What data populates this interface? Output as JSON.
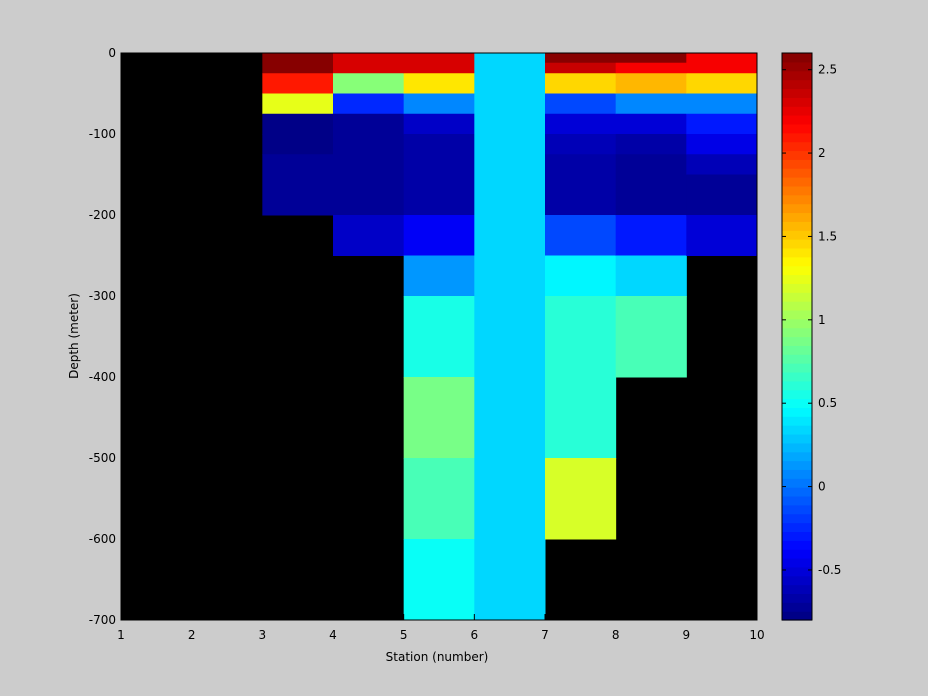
{
  "chart_data": {
    "type": "heatmap",
    "title": "",
    "xlabel": "Station (number)",
    "ylabel": "Depth (meter)",
    "xlim": [
      1,
      10
    ],
    "ylim": [
      -700,
      0
    ],
    "x_ticks": [
      1,
      2,
      3,
      4,
      5,
      6,
      7,
      8,
      9,
      10
    ],
    "y_ticks": [
      0,
      -100,
      -200,
      -300,
      -400,
      -500,
      -600,
      -700
    ],
    "background": "#000000",
    "colormap": "jet",
    "clim": [
      -0.8,
      2.6
    ],
    "colorbar_ticks": [
      2.5,
      2,
      1.5,
      1,
      0.5,
      0,
      -0.5
    ],
    "colorbar_levels": 64,
    "cells": [
      {
        "x0": 3,
        "x1": 4,
        "y0": 0,
        "y1": -25,
        "value": 2.6
      },
      {
        "x0": 3,
        "x1": 4,
        "y0": -25,
        "y1": -50,
        "value": 2.1
      },
      {
        "x0": 3,
        "x1": 4,
        "y0": -50,
        "y1": -75,
        "value": 1.25
      },
      {
        "x0": 3,
        "x1": 4,
        "y0": -75,
        "y1": -100,
        "value": -0.75
      },
      {
        "x0": 3,
        "x1": 4,
        "y0": -100,
        "y1": -125,
        "value": -0.8
      },
      {
        "x0": 3,
        "x1": 4,
        "y0": -125,
        "y1": -200,
        "value": -0.7
      },
      {
        "x0": 4,
        "x1": 5,
        "y0": 0,
        "y1": -25,
        "value": 2.3
      },
      {
        "x0": 4,
        "x1": 5,
        "y0": -25,
        "y1": -50,
        "value": 0.95
      },
      {
        "x0": 4,
        "x1": 5,
        "y0": -50,
        "y1": -75,
        "value": -0.25
      },
      {
        "x0": 4,
        "x1": 5,
        "y0": -75,
        "y1": -200,
        "value": -0.7
      },
      {
        "x0": 4,
        "x1": 5,
        "y0": -200,
        "y1": -250,
        "value": -0.55
      },
      {
        "x0": 5,
        "x1": 6,
        "y0": 0,
        "y1": -25,
        "value": 2.3
      },
      {
        "x0": 5,
        "x1": 6,
        "y0": -25,
        "y1": -50,
        "value": 1.4
      },
      {
        "x0": 5,
        "x1": 6,
        "y0": -50,
        "y1": -75,
        "value": 0.1
      },
      {
        "x0": 5,
        "x1": 6,
        "y0": -75,
        "y1": -100,
        "value": -0.55
      },
      {
        "x0": 5,
        "x1": 6,
        "y0": -100,
        "y1": -125,
        "value": -0.65
      },
      {
        "x0": 5,
        "x1": 6,
        "y0": -125,
        "y1": -200,
        "value": -0.68
      },
      {
        "x0": 5,
        "x1": 6,
        "y0": -200,
        "y1": -250,
        "value": -0.42
      },
      {
        "x0": 5,
        "x1": 6,
        "y0": -250,
        "y1": -300,
        "value": 0.15
      },
      {
        "x0": 5,
        "x1": 6,
        "y0": -300,
        "y1": -400,
        "value": 0.55
      },
      {
        "x0": 5,
        "x1": 6,
        "y0": -400,
        "y1": -500,
        "value": 0.85
      },
      {
        "x0": 5,
        "x1": 6,
        "y0": -500,
        "y1": -600,
        "value": 0.7
      },
      {
        "x0": 5,
        "x1": 6,
        "y0": -600,
        "y1": -700,
        "value": 0.5
      },
      {
        "x0": 6,
        "x1": 7,
        "y0": 0,
        "y1": -700,
        "value": 0.35
      },
      {
        "x0": 7,
        "x1": 8,
        "y0": 0,
        "y1": -12,
        "value": 2.55
      },
      {
        "x0": 7,
        "x1": 8,
        "y0": -12,
        "y1": -25,
        "value": 2.35
      },
      {
        "x0": 7,
        "x1": 8,
        "y0": -25,
        "y1": -50,
        "value": 1.45
      },
      {
        "x0": 7,
        "x1": 8,
        "y0": -50,
        "y1": -75,
        "value": -0.15
      },
      {
        "x0": 7,
        "x1": 8,
        "y0": -75,
        "y1": -100,
        "value": -0.5
      },
      {
        "x0": 7,
        "x1": 8,
        "y0": -100,
        "y1": -125,
        "value": -0.62
      },
      {
        "x0": 7,
        "x1": 8,
        "y0": -125,
        "y1": -200,
        "value": -0.68
      },
      {
        "x0": 7,
        "x1": 8,
        "y0": -200,
        "y1": -250,
        "value": -0.15
      },
      {
        "x0": 7,
        "x1": 8,
        "y0": -250,
        "y1": -300,
        "value": 0.45
      },
      {
        "x0": 7,
        "x1": 8,
        "y0": -300,
        "y1": -500,
        "value": 0.6
      },
      {
        "x0": 7,
        "x1": 8,
        "y0": -500,
        "y1": -600,
        "value": 1.2
      },
      {
        "x0": 8,
        "x1": 9,
        "y0": 0,
        "y1": -12,
        "value": 2.55
      },
      {
        "x0": 8,
        "x1": 9,
        "y0": -12,
        "y1": -25,
        "value": 2.2
      },
      {
        "x0": 8,
        "x1": 9,
        "y0": -25,
        "y1": -50,
        "value": 1.55
      },
      {
        "x0": 8,
        "x1": 9,
        "y0": -50,
        "y1": -75,
        "value": 0.1
      },
      {
        "x0": 8,
        "x1": 9,
        "y0": -75,
        "y1": -100,
        "value": -0.5
      },
      {
        "x0": 8,
        "x1": 9,
        "y0": -100,
        "y1": -125,
        "value": -0.65
      },
      {
        "x0": 8,
        "x1": 9,
        "y0": -125,
        "y1": -200,
        "value": -0.7
      },
      {
        "x0": 8,
        "x1": 9,
        "y0": -200,
        "y1": -250,
        "value": -0.3
      },
      {
        "x0": 8,
        "x1": 9,
        "y0": -250,
        "y1": -300,
        "value": 0.35
      },
      {
        "x0": 8,
        "x1": 9,
        "y0": -300,
        "y1": -400,
        "value": 0.7
      },
      {
        "x0": 9,
        "x1": 10,
        "y0": 0,
        "y1": -25,
        "value": 2.2
      },
      {
        "x0": 9,
        "x1": 10,
        "y0": -25,
        "y1": -50,
        "value": 1.45
      },
      {
        "x0": 9,
        "x1": 10,
        "y0": -50,
        "y1": -75,
        "value": 0.1
      },
      {
        "x0": 9,
        "x1": 10,
        "y0": -75,
        "y1": -100,
        "value": -0.3
      },
      {
        "x0": 9,
        "x1": 10,
        "y0": -100,
        "y1": -125,
        "value": -0.45
      },
      {
        "x0": 9,
        "x1": 10,
        "y0": -125,
        "y1": -150,
        "value": -0.62
      },
      {
        "x0": 9,
        "x1": 10,
        "y0": -150,
        "y1": -200,
        "value": -0.7
      },
      {
        "x0": 9,
        "x1": 10,
        "y0": -200,
        "y1": -250,
        "value": -0.5
      }
    ]
  }
}
